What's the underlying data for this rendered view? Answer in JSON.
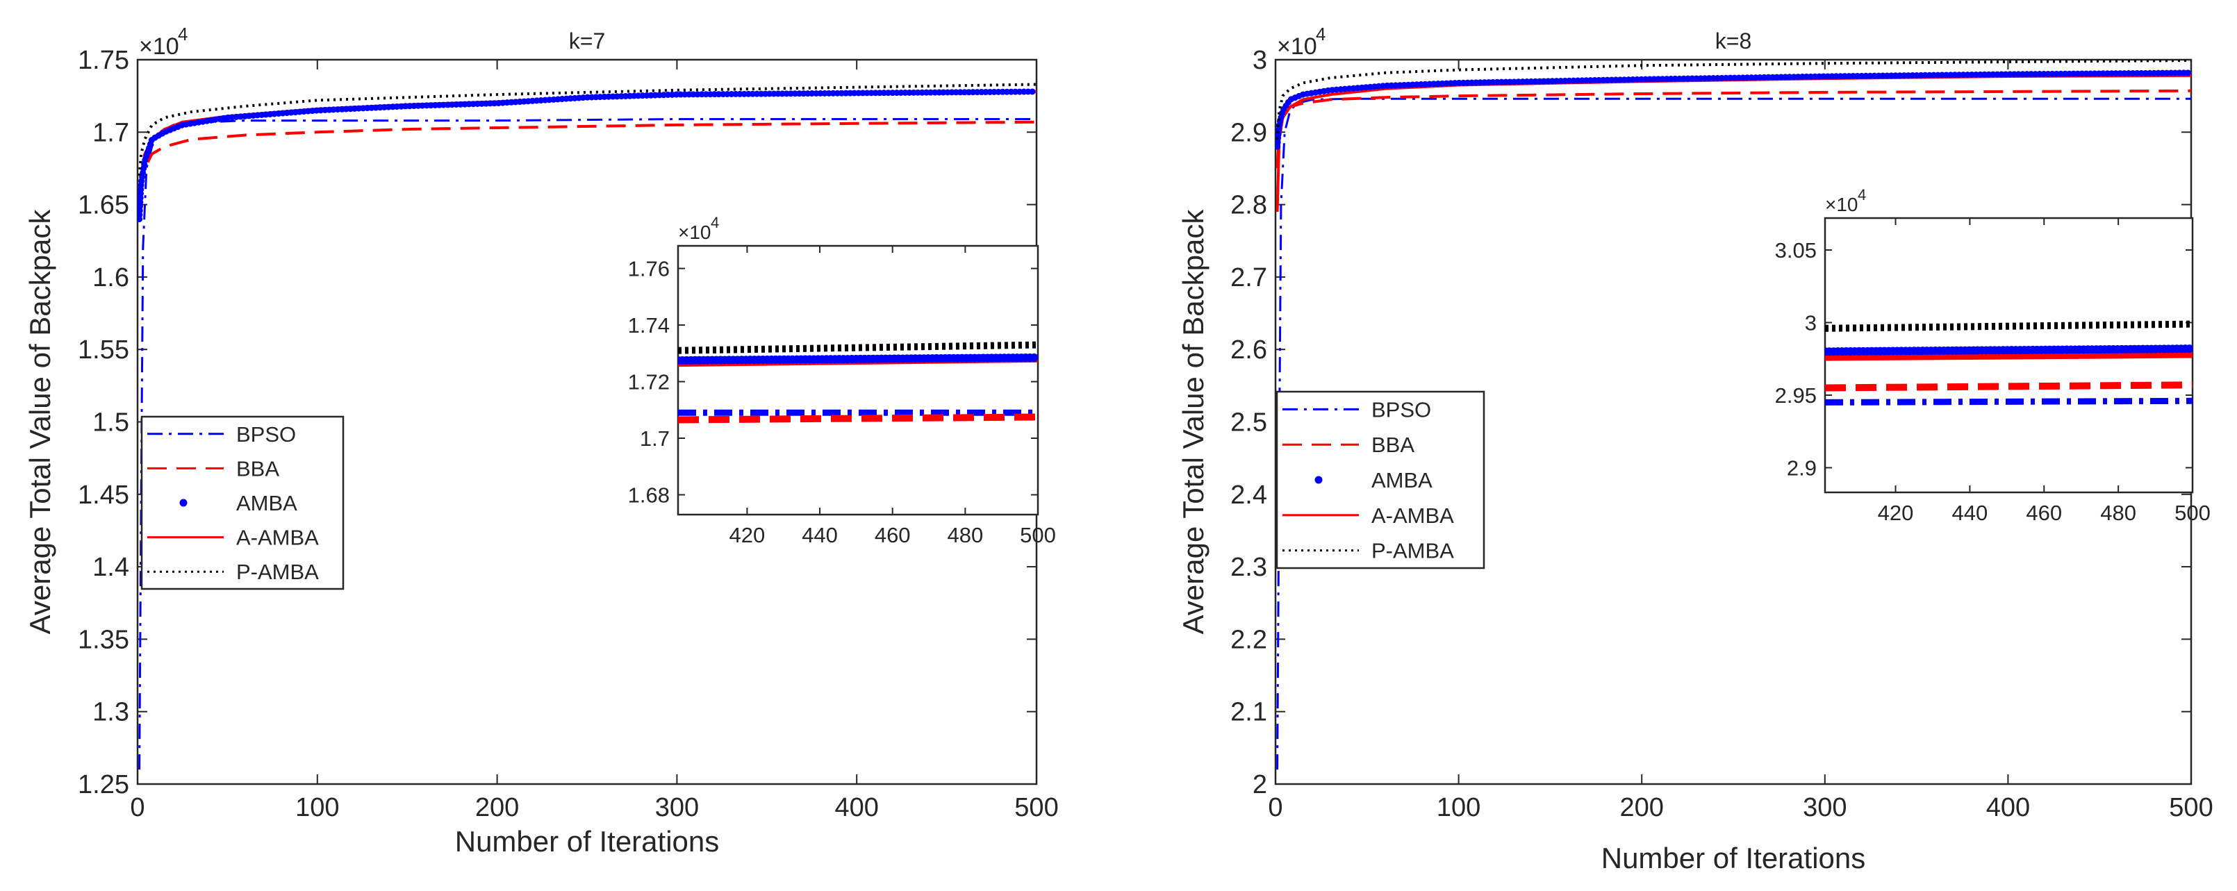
{
  "chart_data": [
    {
      "type": "line",
      "title": "k=7",
      "xlabel": "Number of Iterations",
      "ylabel": "Average Total Value of Backpack",
      "y_multiplier_label": "×10",
      "y_exponent": "4",
      "xlim": [
        0,
        500
      ],
      "ylim": [
        1.25,
        1.75
      ],
      "xticks": [
        "0",
        "100",
        "200",
        "300",
        "400",
        "500"
      ],
      "yticks": [
        "1.25",
        "1.3",
        "1.35",
        "1.4",
        "1.45",
        "1.5",
        "1.55",
        "1.6",
        "1.65",
        "1.7",
        "1.75"
      ],
      "legend": [
        "BPSO",
        "BBA",
        "AMBA",
        "A-AMBA",
        "P-AMBA"
      ],
      "legend_position": "left-lower",
      "series": [
        {
          "name": "BPSO",
          "color": "#0000ff",
          "style": "dashdot",
          "x": [
            1,
            2,
            3,
            5,
            8,
            12,
            20,
            40,
            60,
            100,
            200,
            300,
            400,
            500
          ],
          "y": [
            1.26,
            1.45,
            1.62,
            1.675,
            1.69,
            1.7,
            1.705,
            1.707,
            1.708,
            1.708,
            1.708,
            1.709,
            1.709,
            1.709
          ]
        },
        {
          "name": "BBA",
          "color": "#ff0000",
          "style": "dashed",
          "x": [
            1,
            2,
            4,
            8,
            15,
            30,
            60,
            100,
            150,
            200,
            300,
            400,
            500
          ],
          "y": [
            1.66,
            1.665,
            1.675,
            1.685,
            1.69,
            1.695,
            1.698,
            1.7,
            1.702,
            1.703,
            1.705,
            1.706,
            1.707
          ]
        },
        {
          "name": "AMBA",
          "color": "#0000ff",
          "style": "dots",
          "x": [
            1,
            2,
            4,
            8,
            15,
            25,
            50,
            100,
            150,
            200,
            250,
            300,
            400,
            500
          ],
          "y": [
            1.64,
            1.665,
            1.68,
            1.695,
            1.7,
            1.705,
            1.71,
            1.715,
            1.718,
            1.72,
            1.724,
            1.726,
            1.727,
            1.728
          ]
        },
        {
          "name": "A-AMBA",
          "color": "#ff0000",
          "style": "solid",
          "x": [
            1,
            2,
            4,
            8,
            15,
            25,
            50,
            100,
            150,
            200,
            250,
            300,
            400,
            500
          ],
          "y": [
            1.65,
            1.67,
            1.685,
            1.695,
            1.702,
            1.707,
            1.711,
            1.716,
            1.719,
            1.721,
            1.724,
            1.726,
            1.727,
            1.728
          ]
        },
        {
          "name": "P-AMBA",
          "color": "#000000",
          "style": "dotted",
          "x": [
            1,
            2,
            4,
            8,
            15,
            30,
            60,
            100,
            200,
            300,
            400,
            500
          ],
          "y": [
            1.67,
            1.685,
            1.695,
            1.705,
            1.71,
            1.714,
            1.718,
            1.722,
            1.726,
            1.729,
            1.731,
            1.733
          ]
        }
      ],
      "inset": {
        "xlim": [
          401,
          500
        ],
        "ylim": [
          1.673,
          1.768
        ],
        "xticks": [
          "420",
          "440",
          "460",
          "480",
          "500"
        ],
        "yticks": [
          "1.68",
          "1.7",
          "1.72",
          "1.74",
          "1.76"
        ],
        "y_multiplier_label": "×10",
        "y_exponent": "4",
        "series": [
          {
            "name": "BPSO",
            "color": "#0000ff",
            "style": "dashdot",
            "x": [
              401,
              500
            ],
            "y": [
              1.709,
              1.709
            ]
          },
          {
            "name": "BBA",
            "color": "#ff0000",
            "style": "dashed",
            "x": [
              401,
              500
            ],
            "y": [
              1.7065,
              1.7075
            ]
          },
          {
            "name": "AMBA",
            "color": "#0000ff",
            "style": "dots",
            "x": [
              401,
              500
            ],
            "y": [
              1.7275,
              1.7285
            ]
          },
          {
            "name": "A-AMBA",
            "color": "#ff0000",
            "style": "solid",
            "x": [
              401,
              500
            ],
            "y": [
              1.7265,
              1.728
            ]
          },
          {
            "name": "P-AMBA",
            "color": "#000000",
            "style": "dotted",
            "x": [
              401,
              500
            ],
            "y": [
              1.731,
              1.733
            ]
          }
        ]
      }
    },
    {
      "type": "line",
      "title": "k=8",
      "xlabel": "Number of Iterations",
      "ylabel": "Average Total Value of Backpack",
      "y_multiplier_label": "×10",
      "y_exponent": "4",
      "xlim": [
        0,
        500
      ],
      "ylim": [
        2.0,
        3.0
      ],
      "xticks": [
        "0",
        "100",
        "200",
        "300",
        "400",
        "500"
      ],
      "yticks": [
        "2",
        "2.1",
        "2.2",
        "2.3",
        "2.4",
        "2.5",
        "2.6",
        "2.7",
        "2.8",
        "2.9",
        "3"
      ],
      "legend": [
        "BPSO",
        "BBA",
        "AMBA",
        "A-AMBA",
        "P-AMBA"
      ],
      "legend_position": "left-middle",
      "series": [
        {
          "name": "BPSO",
          "color": "#0000ff",
          "style": "dashdot",
          "x": [
            1,
            2,
            3,
            5,
            8,
            12,
            20,
            40,
            100,
            200,
            300,
            400,
            500
          ],
          "y": [
            2.02,
            2.45,
            2.8,
            2.9,
            2.93,
            2.94,
            2.945,
            2.946,
            2.946,
            2.946,
            2.946,
            2.946,
            2.946
          ]
        },
        {
          "name": "BBA",
          "color": "#ff0000",
          "style": "dashed",
          "x": [
            1,
            2,
            4,
            8,
            15,
            30,
            60,
            100,
            200,
            300,
            400,
            500
          ],
          "y": [
            2.85,
            2.9,
            2.92,
            2.935,
            2.94,
            2.945,
            2.948,
            2.95,
            2.953,
            2.955,
            2.956,
            2.957
          ]
        },
        {
          "name": "AMBA",
          "color": "#0000ff",
          "style": "dots",
          "x": [
            1,
            2,
            4,
            8,
            15,
            30,
            60,
            100,
            200,
            300,
            400,
            500
          ],
          "y": [
            2.88,
            2.91,
            2.93,
            2.945,
            2.952,
            2.958,
            2.964,
            2.968,
            2.973,
            2.977,
            2.98,
            2.982
          ]
        },
        {
          "name": "A-AMBA",
          "color": "#ff0000",
          "style": "solid",
          "x": [
            1,
            2,
            4,
            8,
            15,
            30,
            60,
            100,
            200,
            300,
            400,
            500
          ],
          "y": [
            2.79,
            2.89,
            2.92,
            2.935,
            2.945,
            2.952,
            2.96,
            2.965,
            2.97,
            2.974,
            2.977,
            2.978
          ]
        },
        {
          "name": "P-AMBA",
          "color": "#000000",
          "style": "dotted",
          "x": [
            1,
            2,
            4,
            8,
            15,
            30,
            60,
            100,
            200,
            300,
            400,
            500
          ],
          "y": [
            2.89,
            2.93,
            2.95,
            2.96,
            2.968,
            2.975,
            2.982,
            2.986,
            2.992,
            2.995,
            2.997,
            2.999
          ]
        }
      ],
      "inset": {
        "xlim": [
          401,
          500
        ],
        "ylim": [
          2.883,
          3.072
        ],
        "xticks": [
          "420",
          "440",
          "460",
          "480",
          "500"
        ],
        "yticks": [
          "2.9",
          "2.95",
          "3",
          "3.05"
        ],
        "y_multiplier_label": "×10",
        "y_exponent": "4",
        "series": [
          {
            "name": "BPSO",
            "color": "#0000ff",
            "style": "dashdot",
            "x": [
              401,
              500
            ],
            "y": [
              2.945,
              2.946
            ]
          },
          {
            "name": "BBA",
            "color": "#ff0000",
            "style": "dashed",
            "x": [
              401,
              500
            ],
            "y": [
              2.955,
              2.957
            ]
          },
          {
            "name": "AMBA",
            "color": "#0000ff",
            "style": "dots",
            "x": [
              401,
              500
            ],
            "y": [
              2.98,
              2.982
            ]
          },
          {
            "name": "A-AMBA",
            "color": "#ff0000",
            "style": "solid",
            "x": [
              401,
              500
            ],
            "y": [
              2.976,
              2.978
            ]
          },
          {
            "name": "P-AMBA",
            "color": "#000000",
            "style": "dotted",
            "x": [
              401,
              500
            ],
            "y": [
              2.996,
              2.999
            ]
          }
        ]
      }
    }
  ]
}
